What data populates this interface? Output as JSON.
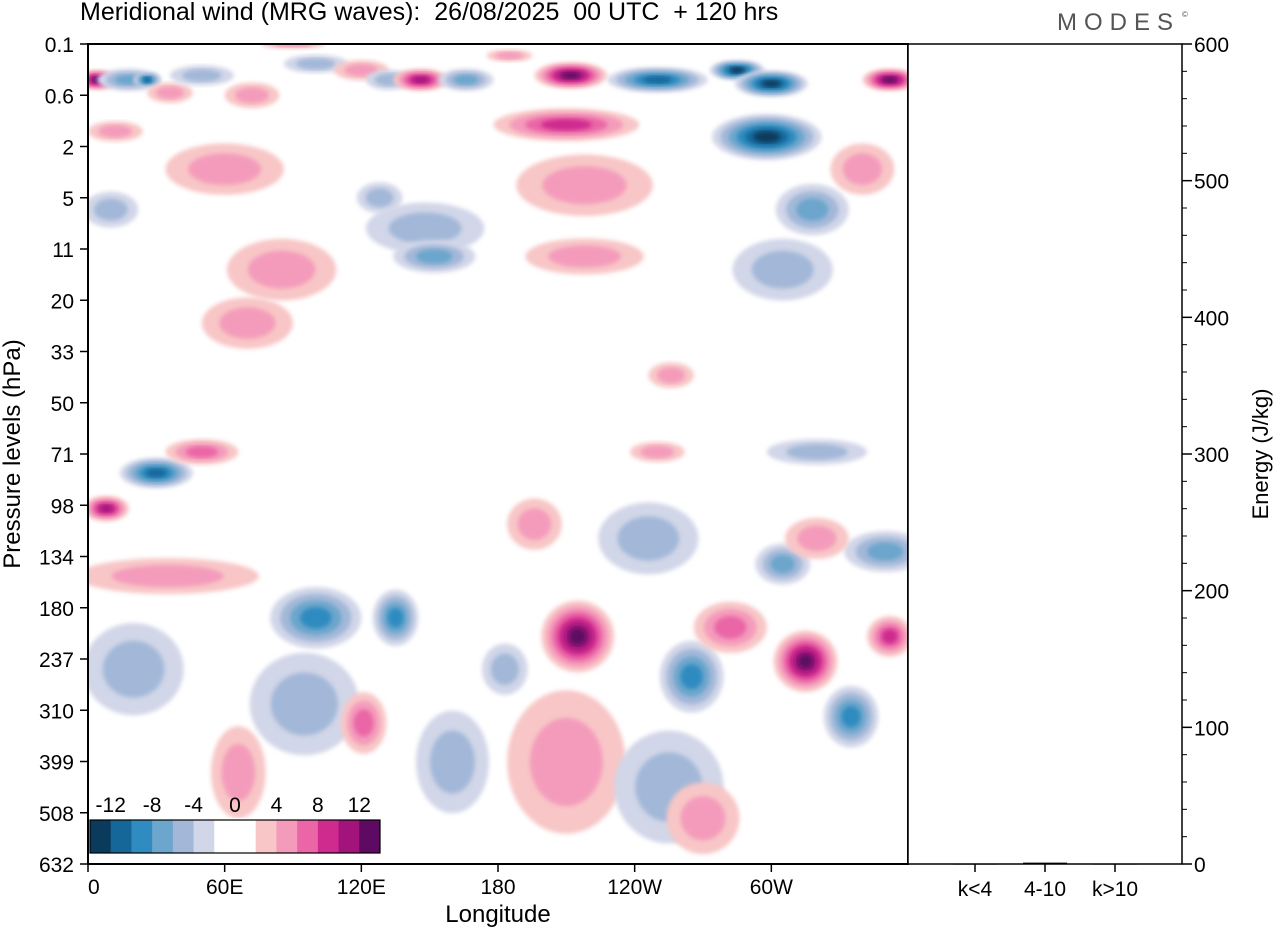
{
  "header": {
    "title": "Meridional wind (MRG waves):  26/08/2025  00 UTC  + 120 hrs",
    "brand": "MODES",
    "brand_mark": "©"
  },
  "chart_data": [
    {
      "type": "heatmap",
      "title": "Meridional wind (MRG waves):  26/08/2025  00 UTC  + 120 hrs",
      "xlabel": "Longitude",
      "ylabel": "Pressure levels (hPa)",
      "x_ticks": [
        "0",
        "60E",
        "120E",
        "180",
        "120W",
        "60W"
      ],
      "x_tick_degrees": [
        0,
        60,
        120,
        180,
        240,
        300
      ],
      "x_range": [
        0,
        360
      ],
      "y_ticks": [
        "0.1",
        "0.6",
        "2",
        "5",
        "11",
        "20",
        "33",
        "50",
        "71",
        "98",
        "134",
        "180",
        "237",
        "310",
        "399",
        "508",
        "632"
      ],
      "colorbar": {
        "labels": [
          "-12",
          "-8",
          "-4",
          "0",
          "4",
          "8",
          "12"
        ],
        "colors": [
          "#0a3a5c",
          "#15679a",
          "#2f8bc0",
          "#6ca6cc",
          "#a3b8d8",
          "#d1d6e8",
          "#ffffff",
          "#ffffff",
          "#f8c6c6",
          "#f49bbb",
          "#ea66a6",
          "#cf2b8f",
          "#a3137c",
          "#5e0a63"
        ],
        "neutral": "#ffffff"
      },
      "features": [
        {
          "lon": 4,
          "level": 0.35,
          "value": 12,
          "w": 8,
          "h": 0.2
        },
        {
          "lon": 18,
          "level": 0.35,
          "value": -7,
          "w": 14,
          "h": 0.22
        },
        {
          "lon": 26,
          "level": 0.35,
          "value": -10,
          "w": 6,
          "h": 0.15
        },
        {
          "lon": 36,
          "level": 0.55,
          "value": 5,
          "w": 10,
          "h": 0.2
        },
        {
          "lon": 50,
          "level": 0.3,
          "value": -4,
          "w": 14,
          "h": 0.2
        },
        {
          "lon": 72,
          "level": 0.6,
          "value": 4,
          "w": 12,
          "h": 0.25
        },
        {
          "lon": 90,
          "level": 0.1,
          "value": 4,
          "w": 14,
          "h": 0.1
        },
        {
          "lon": 100,
          "level": 0.2,
          "value": -4,
          "w": 14,
          "h": 0.18
        },
        {
          "lon": 120,
          "level": 0.25,
          "value": 5,
          "w": 12,
          "h": 0.2
        },
        {
          "lon": 132,
          "level": 0.35,
          "value": -4,
          "w": 10,
          "h": 0.2
        },
        {
          "lon": 146,
          "level": 0.35,
          "value": 11,
          "w": 12,
          "h": 0.22
        },
        {
          "lon": 166,
          "level": 0.35,
          "value": -6,
          "w": 12,
          "h": 0.22
        },
        {
          "lon": 185,
          "level": 0.15,
          "value": 4,
          "w": 10,
          "h": 0.12
        },
        {
          "lon": 212,
          "level": 0.3,
          "value": 14,
          "w": 16,
          "h": 0.26
        },
        {
          "lon": 210,
          "level": 1.2,
          "value": 8,
          "w": 32,
          "h": 0.32
        },
        {
          "lon": 218,
          "level": 4,
          "value": 5,
          "w": 30,
          "h": 0.6
        },
        {
          "lon": 218,
          "level": 12,
          "value": 5,
          "w": 26,
          "h": 0.35
        },
        {
          "lon": 250,
          "level": 0.35,
          "value": -11,
          "w": 22,
          "h": 0.25
        },
        {
          "lon": 285,
          "level": 0.25,
          "value": -13,
          "w": 12,
          "h": 0.2
        },
        {
          "lon": 300,
          "level": 0.4,
          "value": -15,
          "w": 16,
          "h": 0.26
        },
        {
          "lon": 298,
          "level": 1.6,
          "value": -13,
          "w": 24,
          "h": 0.45
        },
        {
          "lon": 318,
          "level": 6,
          "value": -7,
          "w": 16,
          "h": 0.5
        },
        {
          "lon": 305,
          "level": 14,
          "value": -4,
          "w": 22,
          "h": 0.6
        },
        {
          "lon": 352,
          "level": 0.35,
          "value": 13,
          "w": 12,
          "h": 0.22
        },
        {
          "lon": 340,
          "level": 3,
          "value": 4,
          "w": 14,
          "h": 0.5
        },
        {
          "lon": 12,
          "level": 1.4,
          "value": 4,
          "w": 12,
          "h": 0.2
        },
        {
          "lon": 60,
          "level": 3,
          "value": 5,
          "w": 26,
          "h": 0.5
        },
        {
          "lon": 85,
          "level": 14,
          "value": 5,
          "w": 24,
          "h": 0.6
        },
        {
          "lon": 70,
          "level": 25,
          "value": 4,
          "w": 20,
          "h": 0.5
        },
        {
          "lon": 148,
          "level": 8,
          "value": -4,
          "w": 26,
          "h": 0.5
        },
        {
          "lon": 152,
          "level": 12,
          "value": -6,
          "w": 18,
          "h": 0.32
        },
        {
          "lon": 128,
          "level": 5,
          "value": -4,
          "w": 10,
          "h": 0.3
        },
        {
          "lon": 10,
          "level": 6,
          "value": -5,
          "w": 12,
          "h": 0.35
        },
        {
          "lon": 256,
          "level": 40,
          "value": 4,
          "w": 10,
          "h": 0.25
        },
        {
          "lon": 30,
          "level": 80,
          "value": -10,
          "w": 16,
          "h": 0.3
        },
        {
          "lon": 50,
          "level": 70,
          "value": 6,
          "w": 16,
          "h": 0.25
        },
        {
          "lon": 320,
          "level": 70,
          "value": -5,
          "w": 22,
          "h": 0.25
        },
        {
          "lon": 250,
          "level": 70,
          "value": 4,
          "w": 12,
          "h": 0.2
        },
        {
          "lon": 8,
          "level": 100,
          "value": 10,
          "w": 10,
          "h": 0.25
        },
        {
          "lon": 35,
          "level": 150,
          "value": 4,
          "w": 40,
          "h": 0.35
        },
        {
          "lon": 20,
          "level": 250,
          "value": -4,
          "w": 22,
          "h": 0.9
        },
        {
          "lon": 100,
          "level": 190,
          "value": -8,
          "w": 20,
          "h": 0.6
        },
        {
          "lon": 95,
          "level": 300,
          "value": -4,
          "w": 24,
          "h": 1.0
        },
        {
          "lon": 135,
          "level": 190,
          "value": -9,
          "w": 10,
          "h": 0.55
        },
        {
          "lon": 160,
          "level": 400,
          "value": -4,
          "w": 16,
          "h": 1.0
        },
        {
          "lon": 121,
          "level": 330,
          "value": 6,
          "w": 10,
          "h": 0.6
        },
        {
          "lon": 66,
          "level": 420,
          "value": 4,
          "w": 12,
          "h": 0.9
        },
        {
          "lon": 215,
          "level": 210,
          "value": 14,
          "w": 16,
          "h": 0.7
        },
        {
          "lon": 210,
          "level": 400,
          "value": 4,
          "w": 26,
          "h": 1.4
        },
        {
          "lon": 196,
          "level": 110,
          "value": 4,
          "w": 12,
          "h": 0.5
        },
        {
          "lon": 246,
          "level": 120,
          "value": -4,
          "w": 22,
          "h": 0.7
        },
        {
          "lon": 265,
          "level": 260,
          "value": -9,
          "w": 14,
          "h": 0.7
        },
        {
          "lon": 255,
          "level": 450,
          "value": -4,
          "w": 24,
          "h": 1.1
        },
        {
          "lon": 282,
          "level": 200,
          "value": 6,
          "w": 16,
          "h": 0.5
        },
        {
          "lon": 315,
          "level": 240,
          "value": 14,
          "w": 14,
          "h": 0.6
        },
        {
          "lon": 305,
          "level": 140,
          "value": -6,
          "w": 12,
          "h": 0.4
        },
        {
          "lon": 335,
          "level": 320,
          "value": -8,
          "w": 12,
          "h": 0.6
        },
        {
          "lon": 352,
          "level": 210,
          "value": 8,
          "w": 10,
          "h": 0.4
        },
        {
          "lon": 350,
          "level": 130,
          "value": -6,
          "w": 18,
          "h": 0.4
        },
        {
          "lon": 320,
          "level": 120,
          "value": 5,
          "w": 14,
          "h": 0.4
        },
        {
          "lon": 183,
          "level": 250,
          "value": -4,
          "w": 10,
          "h": 0.5
        },
        {
          "lon": 270,
          "level": 520,
          "value": 4,
          "w": 16,
          "h": 0.7
        }
      ]
    },
    {
      "type": "bar",
      "ylabel": "Energy (J/kg)",
      "categories": [
        "k<4",
        "4-10",
        "k>10"
      ],
      "values": [
        0.3,
        1.0,
        0.3
      ],
      "ylim": [
        0,
        600
      ],
      "y_ticks": [
        "0",
        "100",
        "200",
        "300",
        "400",
        "500",
        "600"
      ],
      "y_tick_values": [
        0,
        100,
        200,
        300,
        400,
        500,
        600
      ]
    }
  ]
}
